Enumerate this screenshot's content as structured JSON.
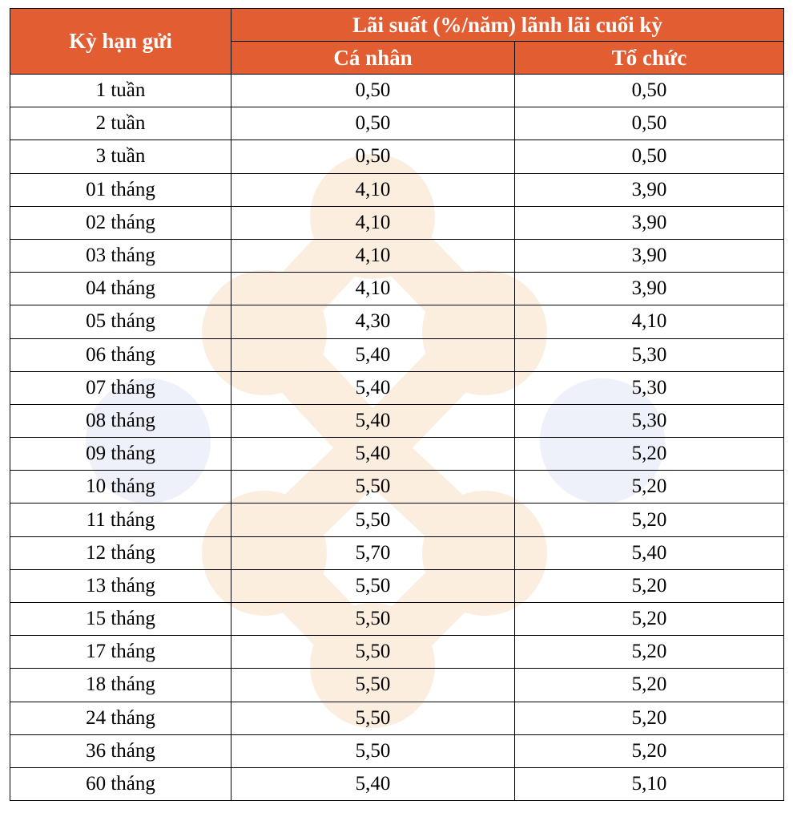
{
  "colors": {
    "header_bg": "#E35D33",
    "header_text": "#FFFFFF",
    "watermark_orange": "#FCEEDF",
    "watermark_blue": "#EEF1FA"
  },
  "watermark": {
    "icon": "bank-logo-watermark-icon"
  },
  "table": {
    "header": {
      "term": "Kỳ hạn gửi",
      "rate_group": "Lãi suất (%/năm) lãnh lãi cuối kỳ",
      "individual": "Cá nhân",
      "organization": "Tổ chức"
    },
    "rows": [
      {
        "term": "1 tuần",
        "individual": "0,50",
        "organization": "0,50"
      },
      {
        "term": "2 tuần",
        "individual": "0,50",
        "organization": "0,50"
      },
      {
        "term": "3 tuần",
        "individual": "0,50",
        "organization": "0,50"
      },
      {
        "term": "01 tháng",
        "individual": "4,10",
        "organization": "3,90"
      },
      {
        "term": "02 tháng",
        "individual": "4,10",
        "organization": "3,90"
      },
      {
        "term": "03 tháng",
        "individual": "4,10",
        "organization": "3,90"
      },
      {
        "term": "04 tháng",
        "individual": "4,10",
        "organization": "3,90"
      },
      {
        "term": "05 tháng",
        "individual": "4,30",
        "organization": "4,10"
      },
      {
        "term": "06 tháng",
        "individual": "5,40",
        "organization": "5,30"
      },
      {
        "term": "07 tháng",
        "individual": "5,40",
        "organization": "5,30"
      },
      {
        "term": "08 tháng",
        "individual": "5,40",
        "organization": "5,30"
      },
      {
        "term": "09 tháng",
        "individual": "5,40",
        "organization": "5,20"
      },
      {
        "term": "10 tháng",
        "individual": "5,50",
        "organization": "5,20"
      },
      {
        "term": "11 tháng",
        "individual": "5,50",
        "organization": "5,20"
      },
      {
        "term": "12 tháng",
        "individual": "5,70",
        "organization": "5,40"
      },
      {
        "term": "13 tháng",
        "individual": "5,50",
        "organization": "5,20"
      },
      {
        "term": "15 tháng",
        "individual": "5,50",
        "organization": "5,20"
      },
      {
        "term": "17 tháng",
        "individual": "5,50",
        "organization": "5,20"
      },
      {
        "term": "18 tháng",
        "individual": "5,50",
        "organization": "5,20"
      },
      {
        "term": "24 tháng",
        "individual": "5,50",
        "organization": "5,20"
      },
      {
        "term": "36 tháng",
        "individual": "5,50",
        "organization": "5,20"
      },
      {
        "term": "60 tháng",
        "individual": "5,40",
        "organization": "5,10"
      }
    ]
  }
}
